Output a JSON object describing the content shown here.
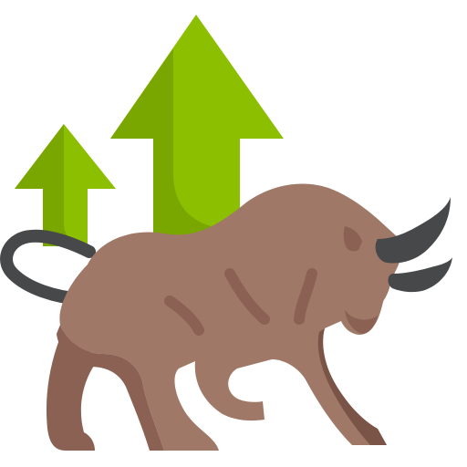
{
  "icon": {
    "name": "bull-market-icon",
    "colors": {
      "arrow_light": "#8cbf00",
      "arrow_shade": "#7aa600",
      "bull_body": "#a07868",
      "bull_shade": "#8a6153",
      "bull_dark": "#7a5446",
      "horn": "#464849",
      "tail": "#464849"
    }
  }
}
